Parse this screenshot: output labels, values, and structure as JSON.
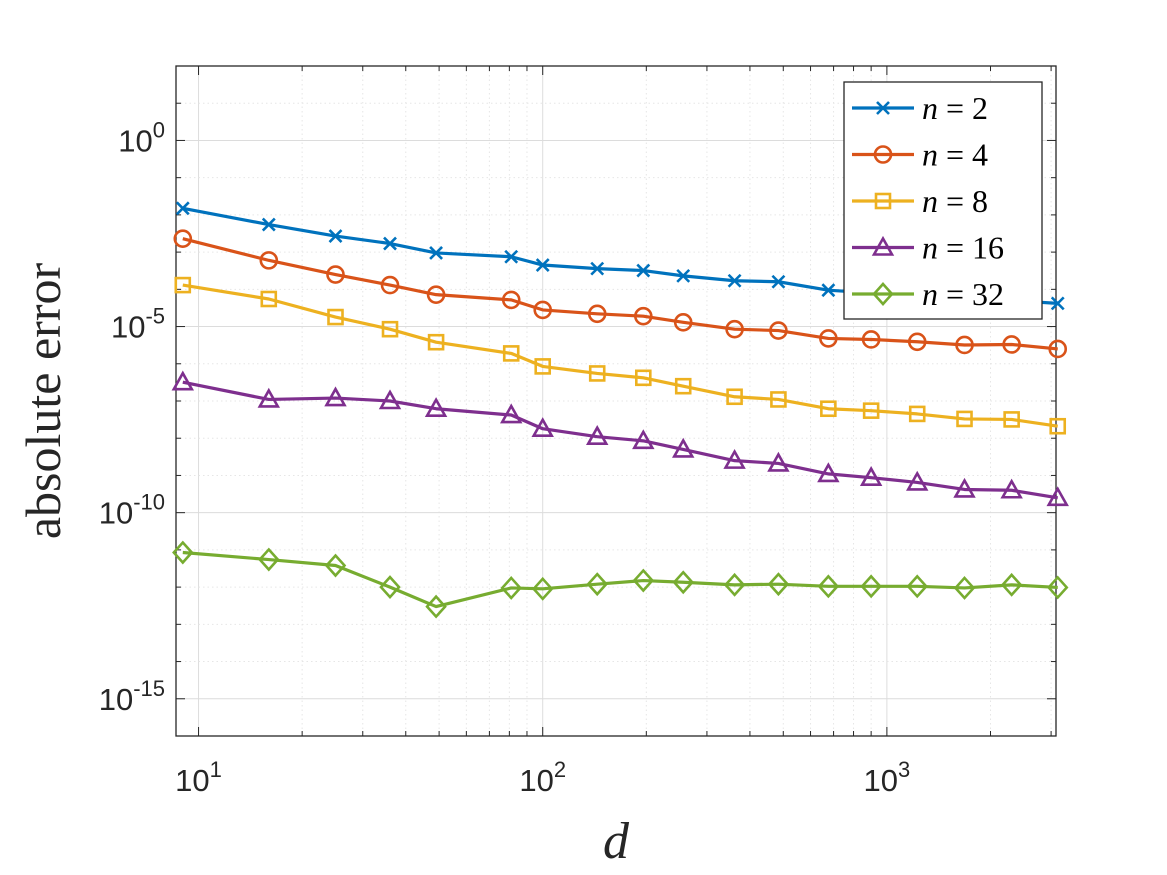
{
  "chart_data": {
    "type": "line",
    "xscale": "log",
    "yscale": "log",
    "title": "",
    "xlabel": "d",
    "ylabel": "absolute error",
    "xlim": [
      8.6,
      3100
    ],
    "ylim": [
      1e-16,
      100.0
    ],
    "grid": true,
    "legend_position": "top-right",
    "x_ticks": [
      {
        "value": 10,
        "base": "10",
        "exp": "1"
      },
      {
        "value": 100,
        "base": "10",
        "exp": "2"
      },
      {
        "value": 1000,
        "base": "10",
        "exp": "3"
      }
    ],
    "y_ticks": [
      {
        "value": 1,
        "base": "10",
        "exp": "0"
      },
      {
        "value": 1e-05,
        "base": "10",
        "exp": "-5"
      },
      {
        "value": 1e-10,
        "base": "10",
        "exp": "-10"
      },
      {
        "value": 1e-15,
        "base": "10",
        "exp": "-15"
      }
    ],
    "x": [
      9,
      16,
      25,
      36,
      49,
      81,
      100,
      144,
      196,
      256,
      361,
      484,
      676,
      900,
      1225,
      1681,
      2304,
      3136
    ],
    "series": [
      {
        "name": "n = 2",
        "n": "2",
        "color": "#0072bd",
        "marker": "x",
        "values": [
          0.015,
          0.0055,
          0.0027,
          0.0017,
          0.00095,
          0.00075,
          0.00045,
          0.00036,
          0.00032,
          0.00023,
          0.00017,
          0.00016,
          9.5e-05,
          8e-05,
          7e-05,
          6e-05,
          5e-05,
          4.2e-05
        ]
      },
      {
        "name": "n = 4",
        "n": "4",
        "color": "#d95319",
        "marker": "circle",
        "values": [
          0.0023,
          0.0006,
          0.00025,
          0.00013,
          7.2e-05,
          5.2e-05,
          2.8e-05,
          2.2e-05,
          1.9e-05,
          1.3e-05,
          8.5e-06,
          7.8e-06,
          4.8e-06,
          4.5e-06,
          3.9e-06,
          3.2e-06,
          3.3e-06,
          2.5e-06
        ]
      },
      {
        "name": "n = 8",
        "n": "8",
        "color": "#edb120",
        "marker": "square",
        "values": [
          0.00013,
          5.5e-05,
          1.8e-05,
          8.5e-06,
          3.8e-06,
          1.9e-06,
          8.5e-07,
          5.5e-07,
          4.2e-07,
          2.5e-07,
          1.3e-07,
          1.1e-07,
          6.2e-08,
          5.5e-08,
          4.5e-08,
          3.3e-08,
          3.2e-08,
          2.1e-08
        ]
      },
      {
        "name": "n = 16",
        "n": "16",
        "color": "#7e2f8e",
        "marker": "triangle",
        "values": [
          3.2e-07,
          1.1e-07,
          1.2e-07,
          1e-07,
          6.2e-08,
          4.2e-08,
          1.8e-08,
          1.1e-08,
          8.5e-09,
          5e-09,
          2.5e-09,
          2.1e-09,
          1.1e-09,
          8.7e-10,
          6.5e-10,
          4.2e-10,
          4e-10,
          2.5e-10
        ]
      },
      {
        "name": "n = 32",
        "n": "32",
        "color": "#77ac30",
        "marker": "diamond",
        "values": [
          8.5e-12,
          5.5e-12,
          3.8e-12,
          1e-12,
          3e-13,
          9.5e-13,
          9e-13,
          1.2e-12,
          1.5e-12,
          1.35e-12,
          1.15e-12,
          1.2e-12,
          1.05e-12,
          1.05e-12,
          1.05e-12,
          9.5e-13,
          1.15e-12,
          9.8e-13
        ]
      }
    ]
  }
}
